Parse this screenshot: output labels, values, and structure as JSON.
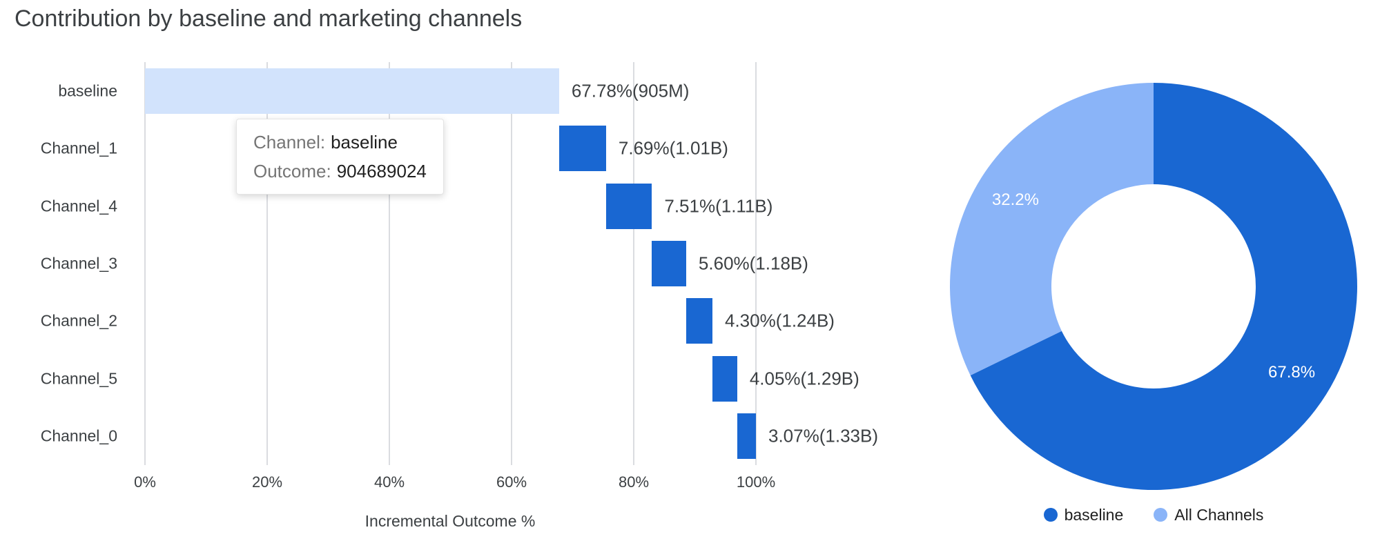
{
  "title": "Contribution by baseline and marketing channels",
  "colors": {
    "baseline_bar": "#d2e3fc",
    "channel_bar": "#1967d2",
    "donut_baseline": "#1967d2",
    "donut_all_channels": "#8ab4f8",
    "gridline": "#dadce0",
    "axis_text": "#3c4043"
  },
  "tooltip": {
    "channel_label": "Channel:",
    "channel_value": "baseline",
    "outcome_label": "Outcome:",
    "outcome_value": "904689024"
  },
  "chart_data": [
    {
      "type": "bar",
      "subtype": "waterfall",
      "title": "Contribution by baseline and marketing channels",
      "xlabel": "Incremental Outcome %",
      "xlim": [
        0,
        100
      ],
      "grid": true,
      "x_ticks": [
        "0%",
        "20%",
        "40%",
        "60%",
        "80%",
        "100%"
      ],
      "x_tick_values": [
        0,
        20,
        40,
        60,
        80,
        100
      ],
      "categories": [
        "baseline",
        "Channel_1",
        "Channel_4",
        "Channel_3",
        "Channel_2",
        "Channel_5",
        "Channel_0"
      ],
      "rows": [
        {
          "category": "baseline",
          "start": 0,
          "value": 67.78,
          "label": "67.78%(905M)",
          "color": "#d2e3fc"
        },
        {
          "category": "Channel_1",
          "start": 67.78,
          "value": 7.69,
          "label": "7.69%(1.01B)",
          "color": "#1967d2"
        },
        {
          "category": "Channel_4",
          "start": 75.47,
          "value": 7.51,
          "label": "7.51%(1.11B)",
          "color": "#1967d2"
        },
        {
          "category": "Channel_3",
          "start": 82.98,
          "value": 5.6,
          "label": "5.60%(1.18B)",
          "color": "#1967d2"
        },
        {
          "category": "Channel_2",
          "start": 88.58,
          "value": 4.3,
          "label": "4.30%(1.24B)",
          "color": "#1967d2"
        },
        {
          "category": "Channel_5",
          "start": 92.88,
          "value": 4.05,
          "label": "4.05%(1.29B)",
          "color": "#1967d2"
        },
        {
          "category": "Channel_0",
          "start": 96.93,
          "value": 3.07,
          "label": "3.07%(1.33B)",
          "color": "#1967d2"
        }
      ]
    },
    {
      "type": "pie",
      "subtype": "donut",
      "legend_position": "bottom",
      "slices": [
        {
          "name": "baseline",
          "value": 67.8,
          "label": "67.8%",
          "color": "#1967d2"
        },
        {
          "name": "All Channels",
          "value": 32.2,
          "label": "32.2%",
          "color": "#8ab4f8"
        }
      ]
    }
  ]
}
